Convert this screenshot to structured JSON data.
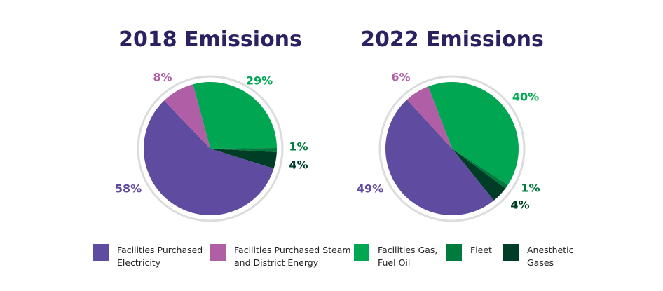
{
  "chart_data": [
    {
      "type": "pie",
      "title": "2018 Emissions",
      "categories": [
        "Facilities Gas, Fuel Oil",
        "Fleet",
        "Anesthetic Gases",
        "Facilities Purchased Electricity",
        "Facilities Purchased Steam and District Energy"
      ],
      "values": [
        29,
        1,
        4,
        58,
        8
      ],
      "value_labels": [
        "29%",
        "1%",
        "4%",
        "58%",
        "8%"
      ],
      "colors": [
        "#00a651",
        "#007a3d",
        "#003d26",
        "#5f4b9f",
        "#b05fa6"
      ]
    },
    {
      "type": "pie",
      "title": "2022 Emissions",
      "categories": [
        "Facilities Gas, Fuel Oil",
        "Fleet",
        "Anesthetic Gases",
        "Facilities Purchased Electricity",
        "Facilities Purchased Steam and District Energy"
      ],
      "values": [
        40,
        1,
        4,
        49,
        6
      ],
      "value_labels": [
        "40%",
        "1%",
        "4%",
        "49%",
        "6%"
      ],
      "colors": [
        "#00a651",
        "#007a3d",
        "#003d26",
        "#5f4b9f",
        "#b05fa6"
      ]
    }
  ]
}
